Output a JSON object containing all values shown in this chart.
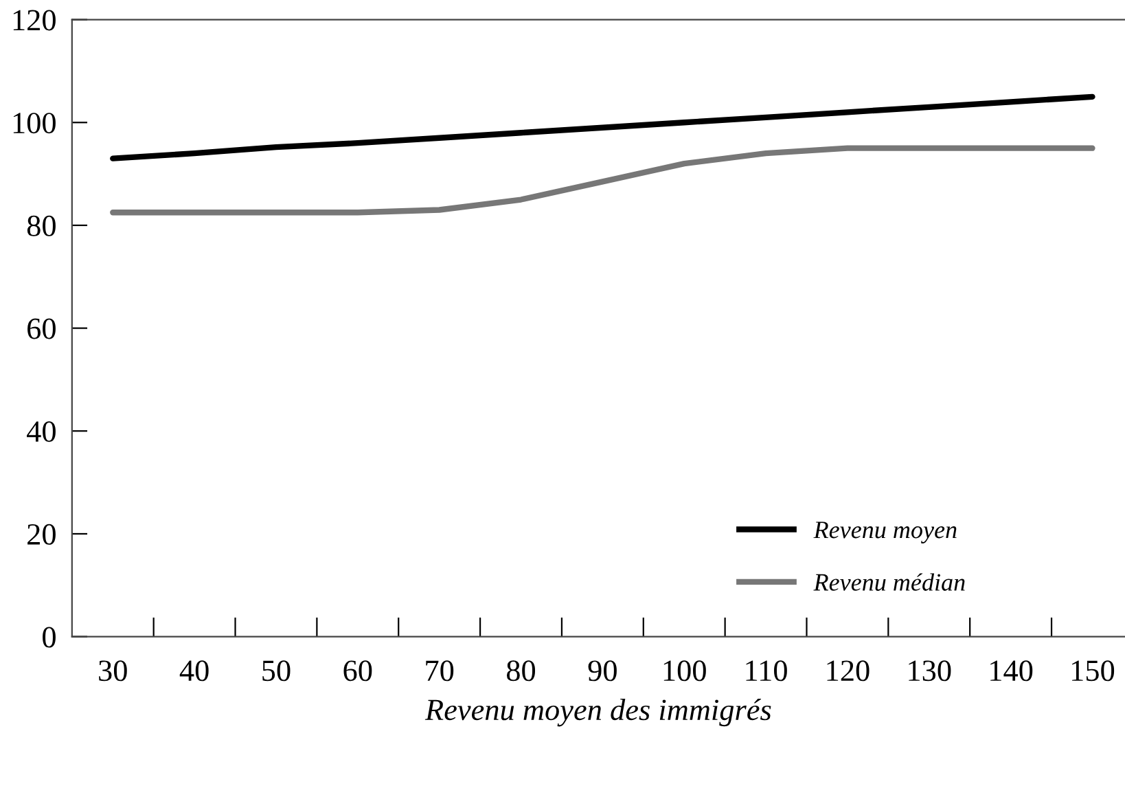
{
  "chart_data": {
    "type": "line",
    "xlabel": "Revenu moyen des immigrés",
    "x": [
      30,
      40,
      50,
      60,
      70,
      80,
      90,
      100,
      110,
      120,
      130,
      140,
      150
    ],
    "series": [
      {
        "name": "Revenu moyen",
        "color": "#000000",
        "values": [
          93,
          94,
          95.2,
          96,
          97,
          98,
          99,
          100,
          101,
          102,
          103,
          104,
          105
        ]
      },
      {
        "name": "Revenu médian",
        "color": "#777777",
        "values": [
          82.5,
          82.5,
          82.5,
          82.5,
          83,
          85,
          88.5,
          92,
          94,
          95,
          95,
          95,
          95
        ]
      }
    ],
    "xlim": [
      25,
      154
    ],
    "ylim": [
      0,
      120
    ],
    "xticks": [
      30,
      {
        "value": 35,
        "label": null
      },
      40,
      {
        "value": 45,
        "label": null
      },
      50,
      {
        "value": 55,
        "label": null
      },
      60,
      {
        "value": 65,
        "label": null
      },
      70,
      {
        "value": 75,
        "label": null
      },
      80,
      {
        "value": 85,
        "label": null
      },
      90,
      {
        "value": 95,
        "label": null
      },
      100,
      {
        "value": 105,
        "label": null
      },
      110,
      {
        "value": 115,
        "label": null
      },
      120,
      {
        "value": 125,
        "label": null
      },
      130,
      {
        "value": 135,
        "label": null
      },
      140,
      {
        "value": 145,
        "label": null
      },
      150
    ],
    "yticks": [
      0,
      20,
      40,
      60,
      80,
      100,
      120
    ],
    "grid": false,
    "legend": "bottom right",
    "marker": "none",
    "line_style": "solid"
  }
}
